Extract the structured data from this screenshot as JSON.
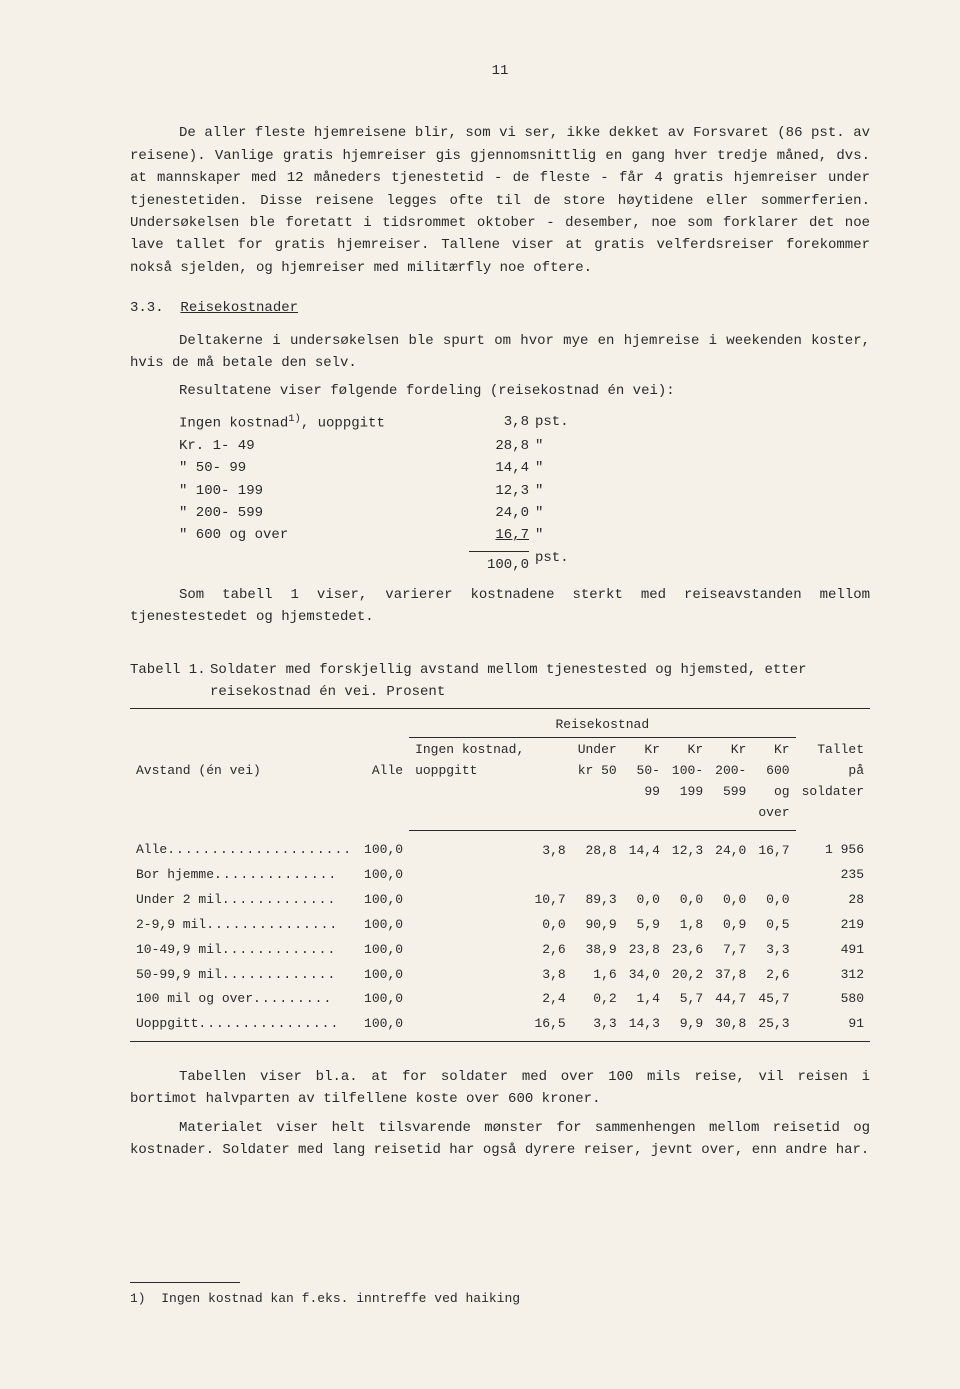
{
  "page_number": "11",
  "paragraphs": {
    "p1": "De aller fleste hjemreisene blir, som vi ser, ikke dekket av Forsvaret (86 pst. av reisene). Vanlige gratis hjemreiser gis gjennomsnittlig en gang hver tredje måned, dvs. at mannskaper med 12 måneders tjenestetid - de fleste - får 4 gratis hjemreiser under tjenestetiden. Disse reisene legges ofte til de store høytidene eller sommerferien. Undersøkelsen ble foretatt i tidsrommet oktober - desember, noe som forklarer det noe lave tallet for gratis hjemreiser. Tallene viser at gratis velferdsreiser forekommer nokså sjelden, og hjemreiser med militærfly noe oftere.",
    "p2": "Deltakerne i undersøkelsen ble spurt om hvor mye en hjemreise i weekenden koster, hvis de må betale den selv.",
    "p3": "Resultatene viser følgende fordeling (reisekostnad én vei):",
    "p4": "Som tabell 1 viser, varierer kostnadene sterkt med reiseavstanden mellom tjenestestedet og hjemstedet.",
    "p5": "Tabellen viser bl.a. at for soldater med over 100 mils reise, vil reisen i bortimot halvparten av tilfellene koste over 600 kroner.",
    "p6": "Materialet viser helt tilsvarende mønster for sammenhengen mellom reisetid og kostnader. Soldater med lang reisetid har også dyrere reiser, jevnt over, enn andre har."
  },
  "section_heading": {
    "num": "3.3.",
    "title": "Reisekostnader"
  },
  "cost_list": {
    "rows": [
      {
        "label_pre": "Ingen kostnad",
        "label_sup": "1)",
        "label_post": ", uoppgitt",
        "value": "3,8",
        "unit": "pst."
      },
      {
        "label_pre": "Kr.  1- 49",
        "value": "28,8",
        "unit": "\""
      },
      {
        "label_pre": "\"   50- 99",
        "value": "14,4",
        "unit": "\""
      },
      {
        "label_pre": "\" 100- 199",
        "value": "12,3",
        "unit": "\""
      },
      {
        "label_pre": "\" 200- 599",
        "value": "24,0",
        "unit": "\""
      },
      {
        "label_pre": "\"      600 og over",
        "value": "16,7",
        "unit": "\""
      }
    ],
    "total": {
      "value": "100,0",
      "unit": "pst."
    }
  },
  "table": {
    "caption_label": "Tabell 1.",
    "caption_text": "Soldater med forskjellig avstand mellom tjenestested og hjemsted, etter reisekostnad én vei.  Prosent",
    "header_left": "Avstand (én vei)",
    "header_alle": "Alle",
    "header_group": "Reisekostnad",
    "header_cols": [
      "Ingen kostnad, uoppgitt",
      "Under kr 50",
      "Kr 50-99",
      "Kr 100-199",
      "Kr 200-599",
      "Kr 600 og over"
    ],
    "header_count": "Tallet på soldater",
    "rows": [
      {
        "label": "Alle",
        "dots": ".....................",
        "alle": "100,0",
        "c": [
          "3,8",
          "28,8",
          "14,4",
          "12,3",
          "24,0",
          "16,7"
        ],
        "n": "1 956"
      },
      {
        "label": "Bor hjemme",
        "dots": "..............",
        "alle": "100,0",
        "c": [
          "",
          "",
          "",
          "",
          "",
          ""
        ],
        "n": "235"
      },
      {
        "label": "Under 2 mil",
        "dots": ".............",
        "alle": "100,0",
        "c": [
          "10,7",
          "89,3",
          "0,0",
          "0,0",
          "0,0",
          "0,0"
        ],
        "n": "28"
      },
      {
        "label": "2-9,9 mil",
        "dots": "...............",
        "alle": "100,0",
        "c": [
          "0,0",
          "90,9",
          "5,9",
          "1,8",
          "0,9",
          "0,5"
        ],
        "n": "219"
      },
      {
        "label": "10-49,9 mil",
        "dots": ".............",
        "alle": "100,0",
        "c": [
          "2,6",
          "38,9",
          "23,8",
          "23,6",
          "7,7",
          "3,3"
        ],
        "n": "491"
      },
      {
        "label": "50-99,9 mil",
        "dots": ".............",
        "alle": "100,0",
        "c": [
          "3,8",
          "1,6",
          "34,0",
          "20,2",
          "37,8",
          "2,6"
        ],
        "n": "312"
      },
      {
        "label": "100 mil og over",
        "dots": ".........",
        "alle": "100,0",
        "c": [
          "2,4",
          "0,2",
          "1,4",
          "5,7",
          "44,7",
          "45,7"
        ],
        "n": "580"
      },
      {
        "label": "Uoppgitt",
        "dots": "................",
        "alle": "100,0",
        "c": [
          "16,5",
          "3,3",
          "14,3",
          "9,9",
          "30,8",
          "25,3"
        ],
        "n": "91"
      }
    ]
  },
  "footnote": {
    "marker": "1)",
    "text": "Ingen kostnad kan f.eks. inntreffe ved haiking"
  }
}
